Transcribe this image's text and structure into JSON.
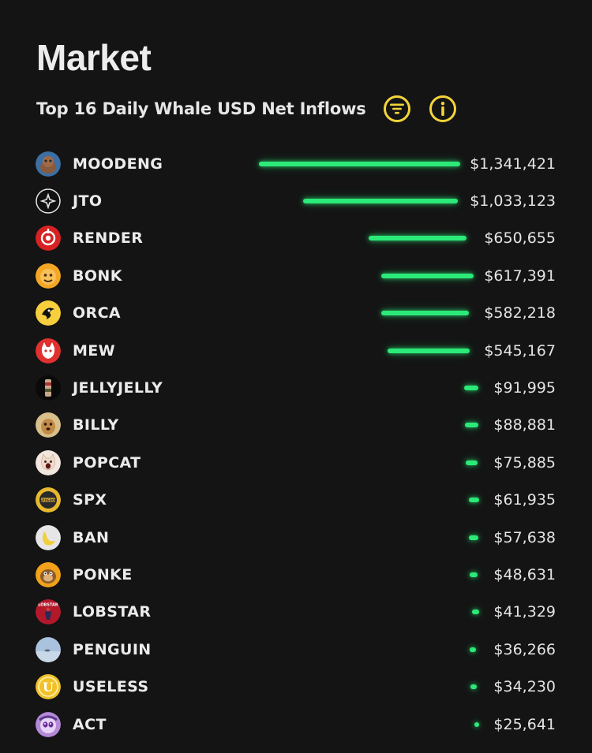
{
  "page": {
    "title": "Market"
  },
  "section": {
    "subtitle": "Top 16 Daily Whale USD Net Inflows"
  },
  "controls": {
    "filter_icon": "filter-icon",
    "info_icon": "info-icon"
  },
  "colors": {
    "accent_yellow": "#f2d43a",
    "bar_green": "#2bea78",
    "background": "#141414"
  },
  "tokens": [
    {
      "name": "MOODENG",
      "amount": "$1,341,421",
      "value": 1341421,
      "icon": "moodeng-icon"
    },
    {
      "name": "JTO",
      "amount": "$1,033,123",
      "value": 1033123,
      "icon": "jto-icon"
    },
    {
      "name": "RENDER",
      "amount": "$650,655",
      "value": 650655,
      "icon": "render-icon"
    },
    {
      "name": "BONK",
      "amount": "$617,391",
      "value": 617391,
      "icon": "bonk-icon"
    },
    {
      "name": "ORCA",
      "amount": "$582,218",
      "value": 582218,
      "icon": "orca-icon"
    },
    {
      "name": "MEW",
      "amount": "$545,167",
      "value": 545167,
      "icon": "mew-icon"
    },
    {
      "name": "JELLYJELLY",
      "amount": "$91,995",
      "value": 91995,
      "icon": "jellyjelly-icon"
    },
    {
      "name": "BILLY",
      "amount": "$88,881",
      "value": 88881,
      "icon": "billy-icon"
    },
    {
      "name": "POPCAT",
      "amount": "$75,885",
      "value": 75885,
      "icon": "popcat-icon"
    },
    {
      "name": "SPX",
      "amount": "$61,935",
      "value": 61935,
      "icon": "spx-icon"
    },
    {
      "name": "BAN",
      "amount": "$57,638",
      "value": 57638,
      "icon": "ban-icon"
    },
    {
      "name": "PONKE",
      "amount": "$48,631",
      "value": 48631,
      "icon": "ponke-icon"
    },
    {
      "name": "LOBSTAR",
      "amount": "$41,329",
      "value": 41329,
      "icon": "lobstar-icon"
    },
    {
      "name": "PENGUIN",
      "amount": "$36,266",
      "value": 36266,
      "icon": "penguin-icon"
    },
    {
      "name": "USELESS",
      "amount": "$34,230",
      "value": 34230,
      "icon": "useless-icon"
    },
    {
      "name": "ACT",
      "amount": "$25,641",
      "value": 25641,
      "icon": "act-icon"
    }
  ]
}
